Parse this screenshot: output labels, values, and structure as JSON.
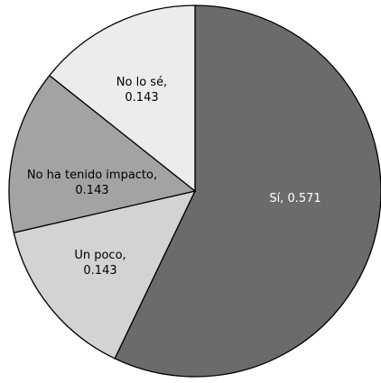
{
  "chart_data": {
    "type": "pie",
    "start_angle_deg": 0,
    "direction": "clockwise",
    "slices": [
      {
        "label": "Sí",
        "value": 0.571,
        "color": "#6b6b6e",
        "label_color": "#ffffff"
      },
      {
        "label": "Un poco",
        "value": 0.143,
        "color": "#d3d3d3",
        "label_color": "#000000"
      },
      {
        "label": "No ha tenido impacto",
        "value": 0.143,
        "color": "#a3a3a5",
        "label_color": "#000000"
      },
      {
        "label": "No lo sé",
        "value": 0.143,
        "color": "#ececec",
        "label_color": "#000000"
      }
    ],
    "label_format": "{label}, {value}"
  }
}
